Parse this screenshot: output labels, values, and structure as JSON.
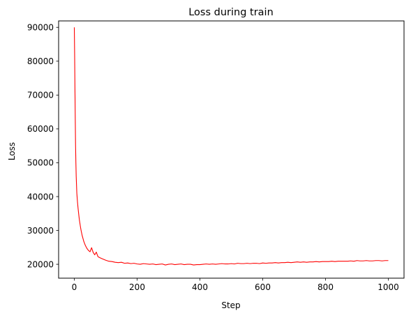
{
  "chart_data": {
    "type": "line",
    "title": "Loss during train",
    "xlabel": "Step",
    "ylabel": "Loss",
    "xlim": [
      -50,
      1050
    ],
    "ylim": [
      15900,
      91900
    ],
    "x_ticks": [
      0,
      200,
      400,
      600,
      800,
      1000
    ],
    "y_ticks": [
      20000,
      30000,
      40000,
      50000,
      60000,
      70000,
      80000,
      90000
    ],
    "grid": false,
    "legend": "none",
    "series": [
      {
        "color": "#ff0000",
        "x": [
          0,
          1,
          2,
          3,
          4,
          5,
          6,
          8,
          10,
          12,
          14,
          16,
          18,
          20,
          22,
          25,
          28,
          30,
          35,
          40,
          45,
          50,
          55,
          60,
          65,
          70,
          75,
          80,
          90,
          100,
          110,
          120,
          130,
          140,
          150,
          160,
          170,
          180,
          190,
          200,
          210,
          220,
          230,
          240,
          250,
          260,
          270,
          280,
          290,
          300,
          310,
          320,
          330,
          340,
          350,
          360,
          370,
          380,
          390,
          400,
          410,
          420,
          430,
          440,
          450,
          460,
          470,
          480,
          490,
          500,
          510,
          520,
          530,
          540,
          550,
          560,
          570,
          580,
          590,
          600,
          610,
          620,
          630,
          640,
          650,
          660,
          670,
          680,
          690,
          700,
          710,
          720,
          730,
          740,
          750,
          760,
          770,
          780,
          790,
          800,
          810,
          820,
          830,
          840,
          850,
          860,
          870,
          880,
          890,
          900,
          910,
          920,
          930,
          940,
          950,
          960,
          970,
          980,
          990,
          1000
        ],
        "y": [
          90000,
          82000,
          72000,
          63000,
          55000,
          50000,
          46000,
          41000,
          38500,
          36500,
          34800,
          33200,
          32000,
          30800,
          29800,
          28500,
          27500,
          26800,
          25600,
          24700,
          24100,
          23700,
          24900,
          23500,
          22800,
          23600,
          22300,
          22000,
          21600,
          21200,
          20900,
          20800,
          20600,
          20500,
          20600,
          20300,
          20400,
          20200,
          20300,
          20100,
          20000,
          20200,
          20100,
          20000,
          20100,
          19900,
          20000,
          20100,
          19800,
          20000,
          20100,
          19900,
          20000,
          20100,
          19900,
          20000,
          20000,
          19800,
          19900,
          19900,
          20000,
          20100,
          20000,
          20100,
          20000,
          20100,
          20200,
          20100,
          20100,
          20200,
          20100,
          20300,
          20200,
          20200,
          20300,
          20200,
          20300,
          20300,
          20200,
          20400,
          20300,
          20400,
          20400,
          20500,
          20400,
          20500,
          20500,
          20600,
          20500,
          20600,
          20700,
          20600,
          20700,
          20600,
          20700,
          20700,
          20800,
          20700,
          20800,
          20800,
          20800,
          20900,
          20800,
          20900,
          20900,
          20900,
          20900,
          21000,
          20900,
          21100,
          21000,
          21000,
          21100,
          21000,
          21000,
          21100,
          21100,
          21000,
          21100,
          21100
        ]
      }
    ]
  }
}
